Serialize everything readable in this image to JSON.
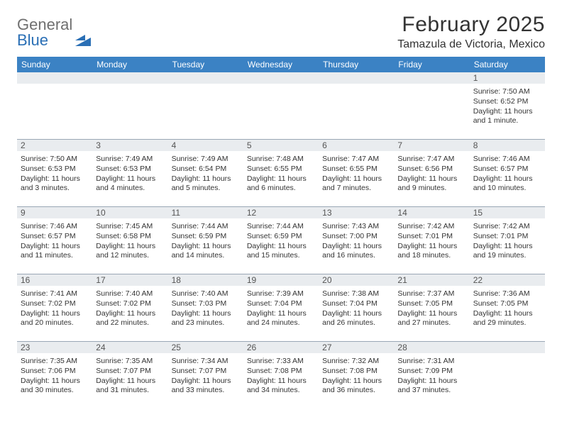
{
  "logo": {
    "text1": "General",
    "text2": "Blue"
  },
  "title": "February 2025",
  "location": "Tamazula de Victoria, Mexico",
  "colors": {
    "header_bg": "#3b82c4",
    "header_text": "#ffffff",
    "daynum_bg": "#e9ecef",
    "border": "#9aa7b5",
    "body_text": "#333333",
    "logo_gray": "#6f6f6f",
    "logo_blue": "#2a6fb5"
  },
  "day_labels": [
    "Sunday",
    "Monday",
    "Tuesday",
    "Wednesday",
    "Thursday",
    "Friday",
    "Saturday"
  ],
  "weeks": [
    [
      {
        "n": "",
        "lines": []
      },
      {
        "n": "",
        "lines": []
      },
      {
        "n": "",
        "lines": []
      },
      {
        "n": "",
        "lines": []
      },
      {
        "n": "",
        "lines": []
      },
      {
        "n": "",
        "lines": []
      },
      {
        "n": "1",
        "lines": [
          "Sunrise: 7:50 AM",
          "Sunset: 6:52 PM",
          "Daylight: 11 hours and 1 minute."
        ]
      }
    ],
    [
      {
        "n": "2",
        "lines": [
          "Sunrise: 7:50 AM",
          "Sunset: 6:53 PM",
          "Daylight: 11 hours and 3 minutes."
        ]
      },
      {
        "n": "3",
        "lines": [
          "Sunrise: 7:49 AM",
          "Sunset: 6:53 PM",
          "Daylight: 11 hours and 4 minutes."
        ]
      },
      {
        "n": "4",
        "lines": [
          "Sunrise: 7:49 AM",
          "Sunset: 6:54 PM",
          "Daylight: 11 hours and 5 minutes."
        ]
      },
      {
        "n": "5",
        "lines": [
          "Sunrise: 7:48 AM",
          "Sunset: 6:55 PM",
          "Daylight: 11 hours and 6 minutes."
        ]
      },
      {
        "n": "6",
        "lines": [
          "Sunrise: 7:47 AM",
          "Sunset: 6:55 PM",
          "Daylight: 11 hours and 7 minutes."
        ]
      },
      {
        "n": "7",
        "lines": [
          "Sunrise: 7:47 AM",
          "Sunset: 6:56 PM",
          "Daylight: 11 hours and 9 minutes."
        ]
      },
      {
        "n": "8",
        "lines": [
          "Sunrise: 7:46 AM",
          "Sunset: 6:57 PM",
          "Daylight: 11 hours and 10 minutes."
        ]
      }
    ],
    [
      {
        "n": "9",
        "lines": [
          "Sunrise: 7:46 AM",
          "Sunset: 6:57 PM",
          "Daylight: 11 hours and 11 minutes."
        ]
      },
      {
        "n": "10",
        "lines": [
          "Sunrise: 7:45 AM",
          "Sunset: 6:58 PM",
          "Daylight: 11 hours and 12 minutes."
        ]
      },
      {
        "n": "11",
        "lines": [
          "Sunrise: 7:44 AM",
          "Sunset: 6:59 PM",
          "Daylight: 11 hours and 14 minutes."
        ]
      },
      {
        "n": "12",
        "lines": [
          "Sunrise: 7:44 AM",
          "Sunset: 6:59 PM",
          "Daylight: 11 hours and 15 minutes."
        ]
      },
      {
        "n": "13",
        "lines": [
          "Sunrise: 7:43 AM",
          "Sunset: 7:00 PM",
          "Daylight: 11 hours and 16 minutes."
        ]
      },
      {
        "n": "14",
        "lines": [
          "Sunrise: 7:42 AM",
          "Sunset: 7:01 PM",
          "Daylight: 11 hours and 18 minutes."
        ]
      },
      {
        "n": "15",
        "lines": [
          "Sunrise: 7:42 AM",
          "Sunset: 7:01 PM",
          "Daylight: 11 hours and 19 minutes."
        ]
      }
    ],
    [
      {
        "n": "16",
        "lines": [
          "Sunrise: 7:41 AM",
          "Sunset: 7:02 PM",
          "Daylight: 11 hours and 20 minutes."
        ]
      },
      {
        "n": "17",
        "lines": [
          "Sunrise: 7:40 AM",
          "Sunset: 7:02 PM",
          "Daylight: 11 hours and 22 minutes."
        ]
      },
      {
        "n": "18",
        "lines": [
          "Sunrise: 7:40 AM",
          "Sunset: 7:03 PM",
          "Daylight: 11 hours and 23 minutes."
        ]
      },
      {
        "n": "19",
        "lines": [
          "Sunrise: 7:39 AM",
          "Sunset: 7:04 PM",
          "Daylight: 11 hours and 24 minutes."
        ]
      },
      {
        "n": "20",
        "lines": [
          "Sunrise: 7:38 AM",
          "Sunset: 7:04 PM",
          "Daylight: 11 hours and 26 minutes."
        ]
      },
      {
        "n": "21",
        "lines": [
          "Sunrise: 7:37 AM",
          "Sunset: 7:05 PM",
          "Daylight: 11 hours and 27 minutes."
        ]
      },
      {
        "n": "22",
        "lines": [
          "Sunrise: 7:36 AM",
          "Sunset: 7:05 PM",
          "Daylight: 11 hours and 29 minutes."
        ]
      }
    ],
    [
      {
        "n": "23",
        "lines": [
          "Sunrise: 7:35 AM",
          "Sunset: 7:06 PM",
          "Daylight: 11 hours and 30 minutes."
        ]
      },
      {
        "n": "24",
        "lines": [
          "Sunrise: 7:35 AM",
          "Sunset: 7:07 PM",
          "Daylight: 11 hours and 31 minutes."
        ]
      },
      {
        "n": "25",
        "lines": [
          "Sunrise: 7:34 AM",
          "Sunset: 7:07 PM",
          "Daylight: 11 hours and 33 minutes."
        ]
      },
      {
        "n": "26",
        "lines": [
          "Sunrise: 7:33 AM",
          "Sunset: 7:08 PM",
          "Daylight: 11 hours and 34 minutes."
        ]
      },
      {
        "n": "27",
        "lines": [
          "Sunrise: 7:32 AM",
          "Sunset: 7:08 PM",
          "Daylight: 11 hours and 36 minutes."
        ]
      },
      {
        "n": "28",
        "lines": [
          "Sunrise: 7:31 AM",
          "Sunset: 7:09 PM",
          "Daylight: 11 hours and 37 minutes."
        ]
      },
      {
        "n": "",
        "lines": []
      }
    ]
  ]
}
